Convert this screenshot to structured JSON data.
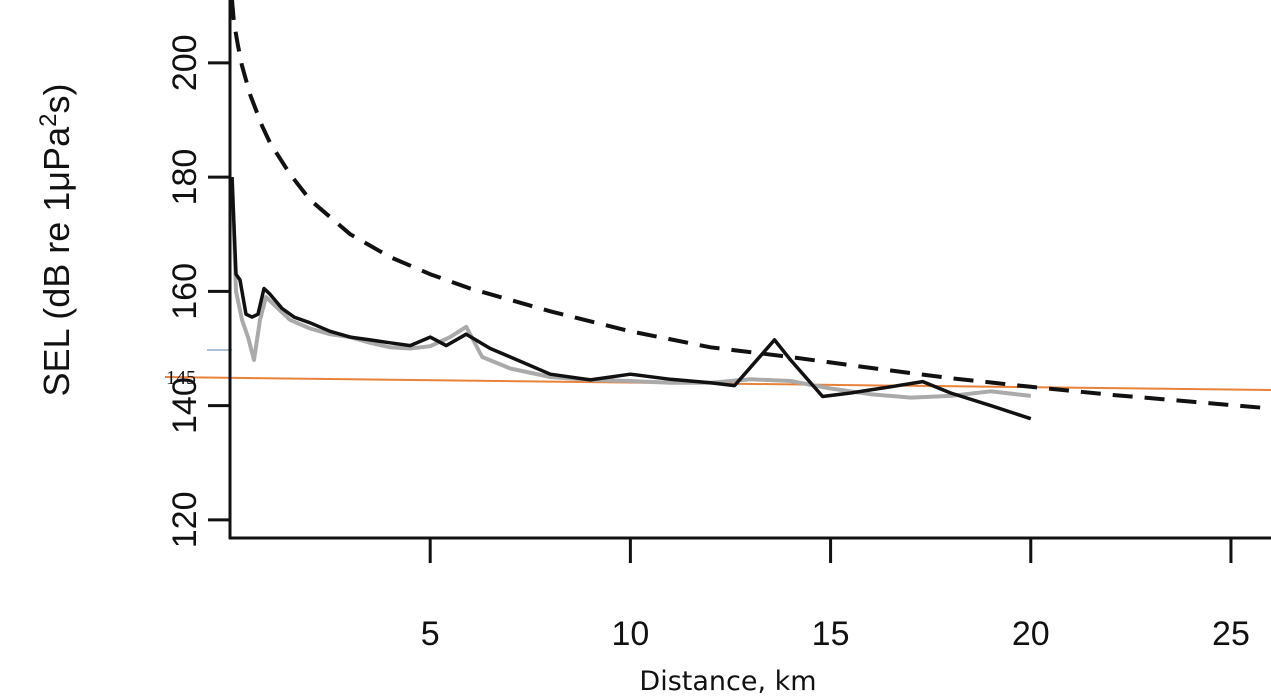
{
  "chart_data": {
    "type": "line",
    "xlabel": "Distance, km",
    "ylabel_parts": {
      "prefix": "SEL (dB re 1",
      "mu": "μ",
      "unit": "Pa",
      "sup": "2",
      "suffix": "s)"
    },
    "xlim": [
      0,
      26
    ],
    "ylim": [
      117,
      211
    ],
    "x_ticks": [
      5,
      10,
      15,
      20,
      25
    ],
    "y_ticks": [
      120,
      140,
      160,
      180,
      200
    ],
    "annotation": {
      "text": "145",
      "y": 145,
      "color": "#E8823A"
    },
    "series": [
      {
        "style": "dashed",
        "color": "#111111",
        "x": [
          0.05,
          0.1,
          0.2,
          0.3,
          0.5,
          0.8,
          1.0,
          1.5,
          2.0,
          3.0,
          4.0,
          5.0,
          6.0,
          8.0,
          10.0,
          12.0,
          14.0,
          16.0,
          18.0,
          20.0,
          22.0,
          24.0,
          26.0
        ],
        "y": [
          211,
          207,
          203,
          199.5,
          194.5,
          189,
          186,
          180.5,
          176,
          170,
          166,
          163,
          160.5,
          156.5,
          153,
          150.2,
          148.5,
          146.6,
          144.8,
          143.3,
          141.9,
          140.7,
          139.5
        ]
      },
      {
        "style": "solid",
        "color": "#aaaaaa",
        "x": [
          0.05,
          0.15,
          0.3,
          0.45,
          0.6,
          0.75,
          0.9,
          1.2,
          1.5,
          2.0,
          2.5,
          3.0,
          3.5,
          4.0,
          4.5,
          5.0,
          5.5,
          5.9,
          6.3,
          7.0,
          8.0,
          9.0,
          10.0,
          11.0,
          12.0,
          13.0,
          14.0,
          15.0,
          16.0,
          17.0,
          18.0,
          19.0,
          20.0
        ],
        "y": [
          180,
          160,
          155,
          152,
          148,
          155,
          159,
          157,
          155,
          153.5,
          152.5,
          152,
          151,
          150.2,
          150,
          150.4,
          152,
          153.8,
          148.5,
          146.5,
          145,
          144.5,
          144.3,
          144,
          144,
          144.6,
          144.3,
          143,
          142,
          141.4,
          141.7,
          142.5,
          141.7
        ]
      },
      {
        "style": "solid",
        "color": "#111111",
        "x": [
          0.05,
          0.15,
          0.25,
          0.4,
          0.55,
          0.7,
          0.85,
          1.0,
          1.3,
          1.6,
          2.0,
          2.5,
          3.0,
          3.5,
          4.0,
          4.5,
          5.0,
          5.4,
          5.9,
          6.5,
          7.0,
          8.0,
          9.0,
          10.0,
          11.0,
          12.0,
          12.6,
          13.6,
          14.0,
          14.8,
          15.5,
          16.5,
          17.3,
          18.0,
          19.0,
          20.0
        ],
        "y": [
          180,
          163,
          162,
          156,
          155.5,
          156,
          160.5,
          159.5,
          157,
          155.5,
          154.5,
          153,
          152,
          151.5,
          151,
          150.5,
          152,
          150.5,
          152.5,
          150,
          148.5,
          145.5,
          144.5,
          145.5,
          144.6,
          144,
          143.5,
          151.5,
          148,
          141.6,
          142.2,
          143.3,
          144.2,
          142.2,
          140,
          137.7
        ]
      }
    ]
  }
}
